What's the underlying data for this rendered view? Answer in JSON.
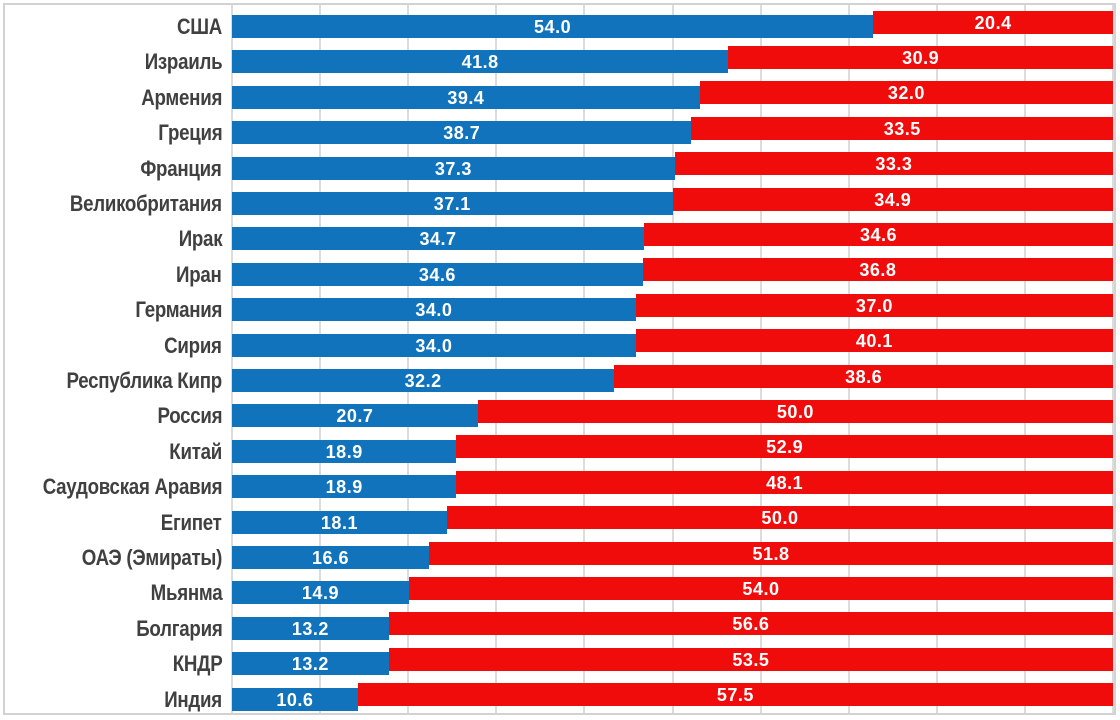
{
  "chart_data": {
    "type": "bar",
    "orientation": "horizontal",
    "stacked": true,
    "title": "",
    "xlabel": "",
    "ylabel": "",
    "legend": "none",
    "grid": "vertical light-gray gridlines, 10 intervals",
    "xlim": [
      0,
      74.2
    ],
    "value_labels": "inside bars, white bold, one decimal",
    "red_bars_clipped_at_right_edge": true,
    "categories": [
      "США",
      "Израиль",
      "Армения",
      "Греция",
      "Франция",
      "Великобритания",
      "Ирак",
      "Иран",
      "Германия",
      "Сирия",
      "Республика Кипр",
      "Россия",
      "Китай",
      "Саудовская Аравия",
      "Египет",
      "ОАЭ (Эмираты)",
      "Мьянма",
      "Болгария",
      "КНДР",
      "Индия"
    ],
    "series": [
      {
        "name": "blue-series",
        "color": "#1073bc",
        "values": [
          54.0,
          41.8,
          39.4,
          38.7,
          37.3,
          37.1,
          34.7,
          34.6,
          34.0,
          34.0,
          32.2,
          20.7,
          18.9,
          18.9,
          18.1,
          16.6,
          14.9,
          13.2,
          13.2,
          10.6
        ]
      },
      {
        "name": "red-series",
        "color": "#f10c0c",
        "values": [
          20.4,
          30.9,
          32.0,
          33.5,
          33.3,
          34.9,
          34.6,
          36.8,
          37.0,
          40.1,
          38.6,
          50.0,
          52.9,
          48.1,
          50.0,
          51.8,
          54.0,
          56.6,
          53.5,
          57.5
        ]
      }
    ]
  },
  "colors": {
    "blue_bar": "#1073bc",
    "red_bar": "#f10c0c",
    "category_label": "#404040",
    "value_label": "#ffffff",
    "gridline": "#dcdcdc",
    "border": "#d2d2d2",
    "background": "#ffffff"
  }
}
